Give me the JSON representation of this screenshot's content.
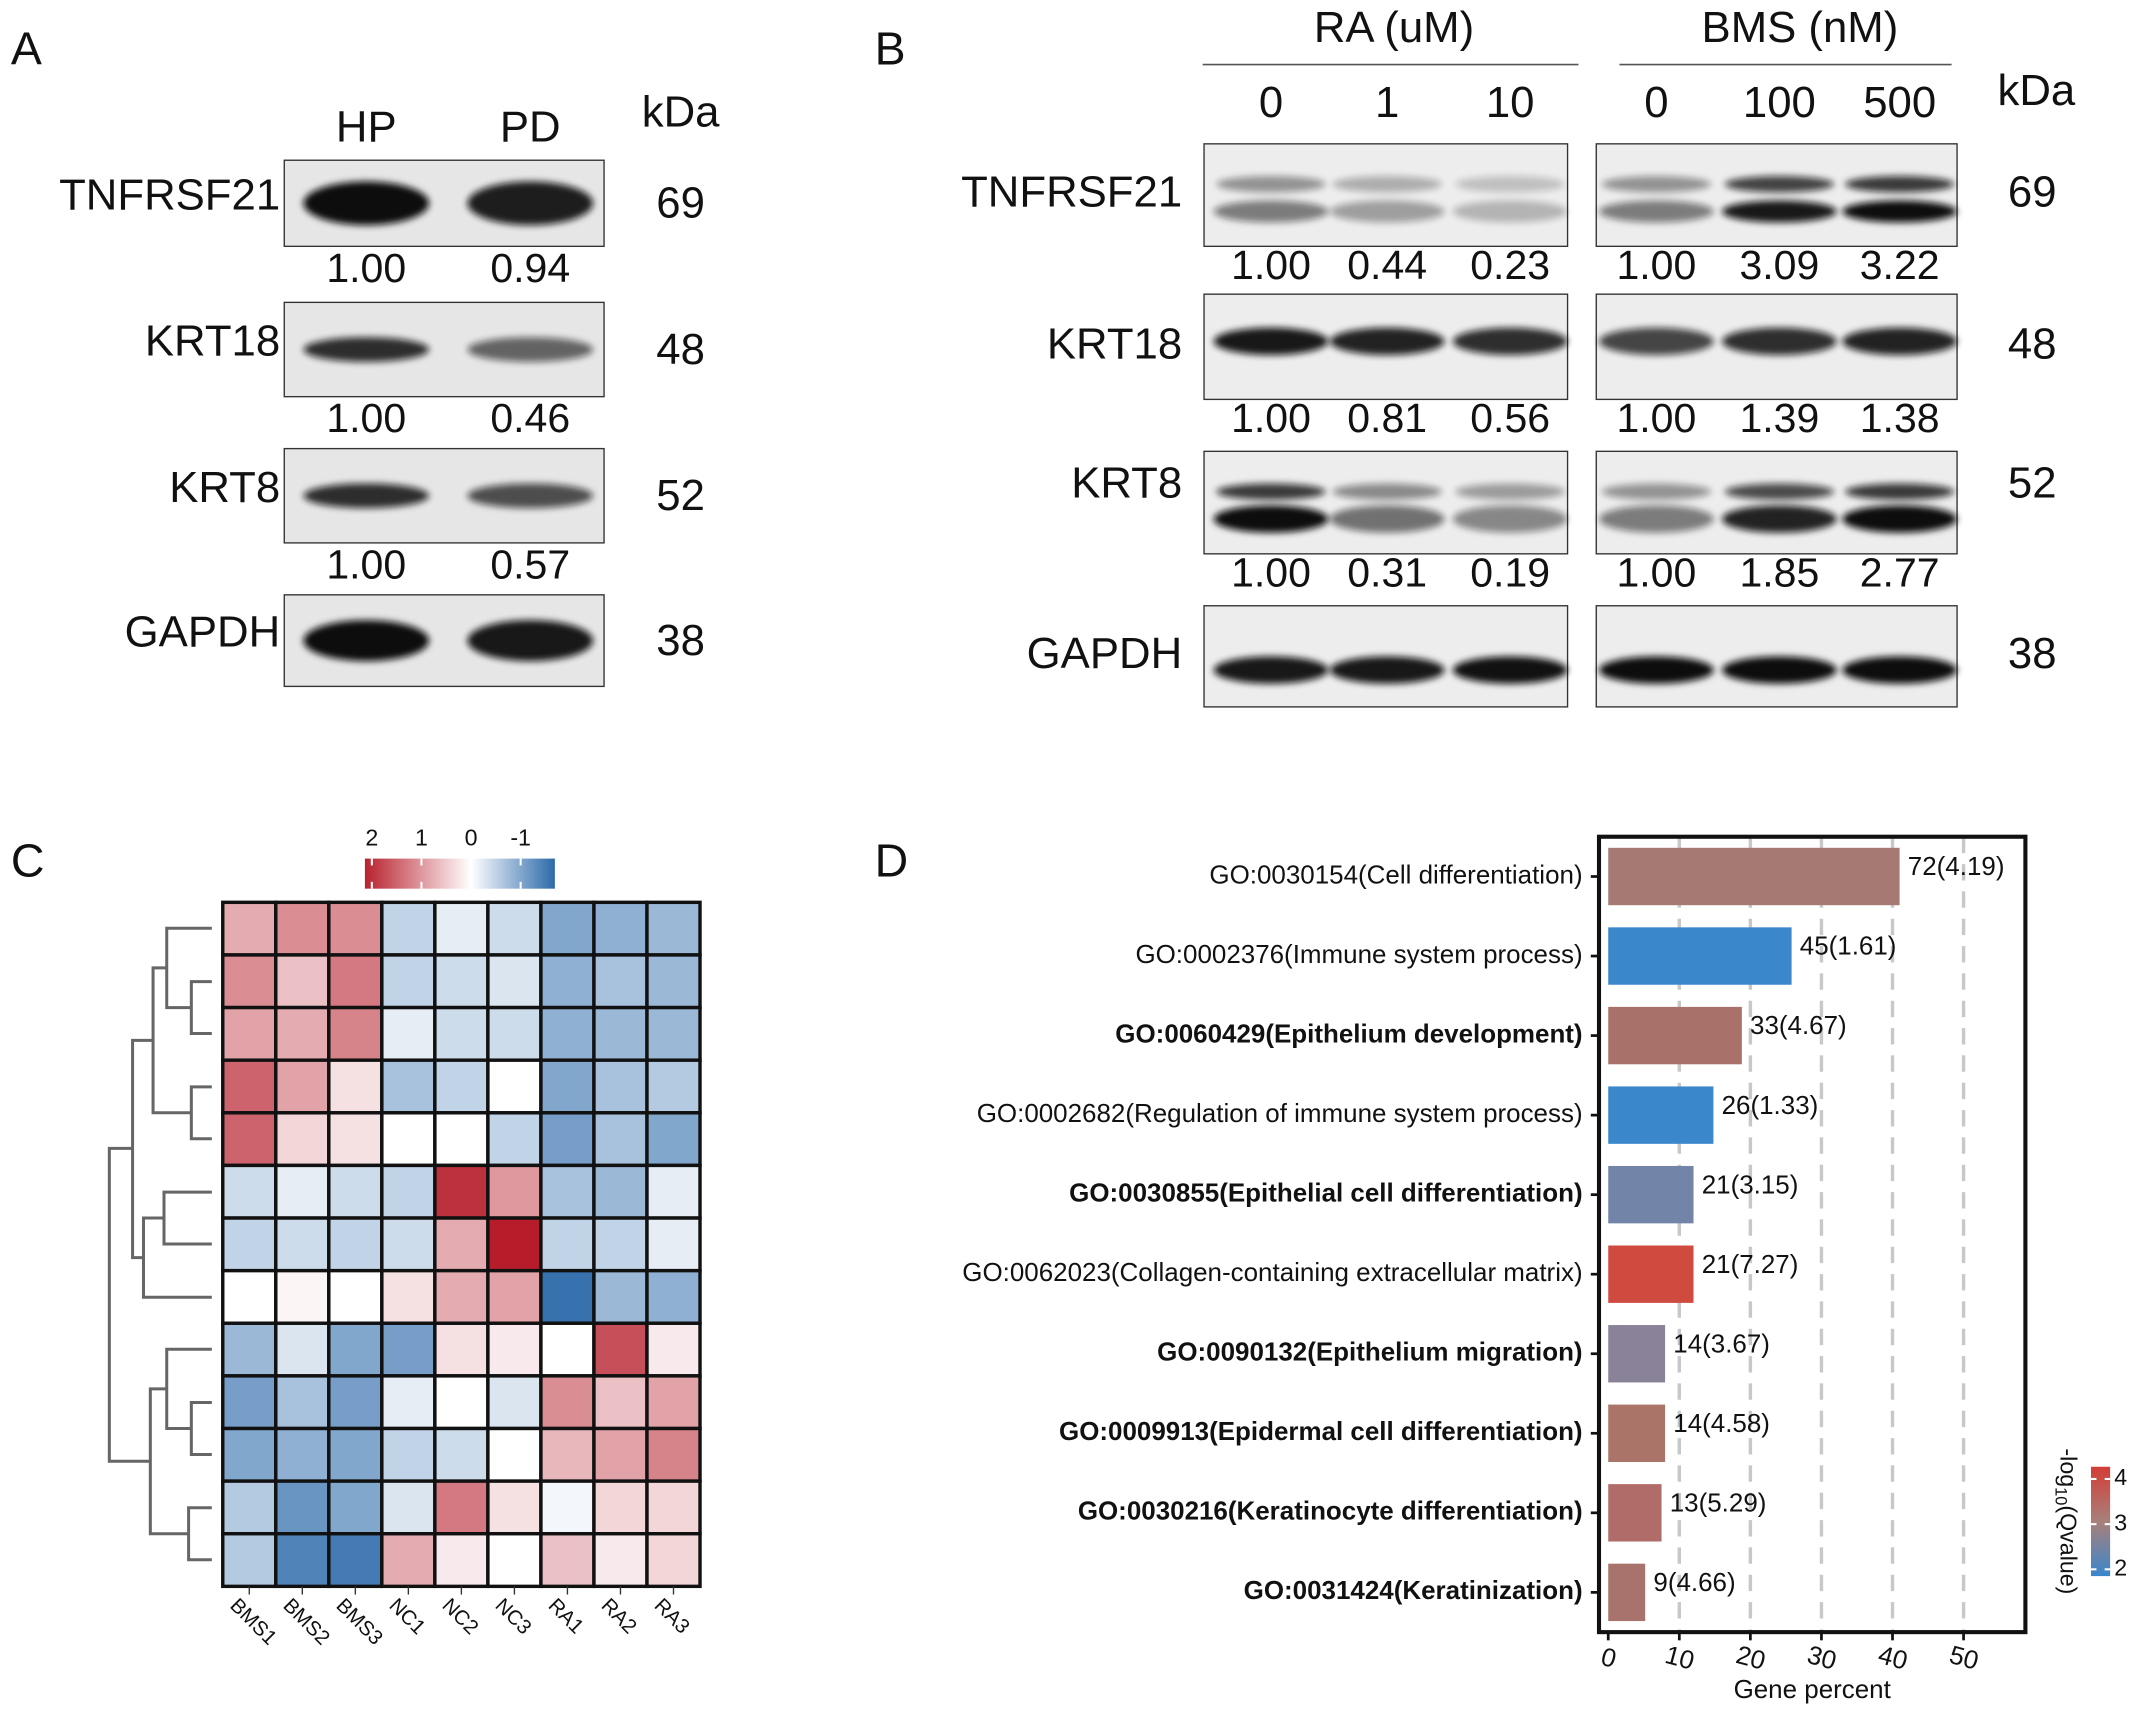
{
  "panel_a": {
    "label": "A",
    "columns": [
      "HP",
      "PD"
    ],
    "unit": "kDa",
    "rows": [
      {
        "protein": "TNFRSF21",
        "kda": "69",
        "ratios": [
          "1.00",
          "0.94"
        ]
      },
      {
        "protein": "KRT18",
        "kda": "48",
        "ratios": [
          "1.00",
          "0.46"
        ]
      },
      {
        "protein": "KRT8",
        "kda": "52",
        "ratios": [
          "1.00",
          "0.57"
        ]
      },
      {
        "protein": "GAPDH",
        "kda": "38"
      }
    ]
  },
  "panel_b": {
    "label": "B",
    "unit": "kDa",
    "groups": [
      {
        "name": "RA (uM)",
        "doses": [
          "0",
          "1",
          "10"
        ]
      },
      {
        "name": "BMS (nM)",
        "doses": [
          "0",
          "100",
          "500"
        ]
      }
    ],
    "rows": [
      {
        "protein": "TNFRSF21",
        "kda": "69",
        "ratios": [
          [
            "1.00",
            "0.44",
            "0.23"
          ],
          [
            "1.00",
            "3.09",
            "3.22"
          ]
        ]
      },
      {
        "protein": "KRT18",
        "kda": "48",
        "ratios": [
          [
            "1.00",
            "0.81",
            "0.56"
          ],
          [
            "1.00",
            "1.39",
            "1.38"
          ]
        ]
      },
      {
        "protein": "KRT8",
        "kda": "52",
        "ratios": [
          [
            "1.00",
            "0.31",
            "0.19"
          ],
          [
            "1.00",
            "1.85",
            "2.77"
          ]
        ]
      },
      {
        "protein": "GAPDH",
        "kda": "38"
      }
    ]
  },
  "chart_data": [
    {
      "type": "heatmap",
      "label": "C",
      "x": [
        "BMS1",
        "BMS2",
        "BMS3",
        "NC1",
        "NC2",
        "NC3",
        "RA1",
        "RA2",
        "RA3"
      ],
      "values": [
        [
          0.8,
          1.1,
          1.1,
          -0.5,
          -0.2,
          -0.4,
          -1.0,
          -0.9,
          -0.8
        ],
        [
          1.1,
          0.6,
          1.3,
          -0.5,
          -0.4,
          -0.3,
          -0.9,
          -0.7,
          -0.8
        ],
        [
          0.9,
          0.8,
          1.2,
          -0.2,
          -0.4,
          -0.4,
          -0.9,
          -0.8,
          -0.8
        ],
        [
          1.5,
          0.9,
          0.3,
          -0.7,
          -0.5,
          0.0,
          -1.0,
          -0.7,
          -0.6
        ],
        [
          1.5,
          0.4,
          0.3,
          0.0,
          0.0,
          -0.5,
          -1.1,
          -0.7,
          -1.0
        ],
        [
          -0.4,
          -0.2,
          -0.4,
          -0.5,
          2.0,
          1.0,
          -0.7,
          -0.8,
          -0.2
        ],
        [
          -0.5,
          -0.4,
          -0.5,
          -0.4,
          0.8,
          2.2,
          -0.5,
          -0.5,
          -0.2
        ],
        [
          0.0,
          0.1,
          0.0,
          0.3,
          0.8,
          0.9,
          -1.6,
          -0.8,
          -0.9
        ],
        [
          -0.8,
          -0.3,
          -1.0,
          -1.1,
          0.3,
          0.2,
          0.0,
          1.7,
          0.2
        ],
        [
          -1.1,
          -0.7,
          -1.1,
          -0.2,
          0.0,
          -0.3,
          1.1,
          0.6,
          0.9
        ],
        [
          -1.0,
          -0.9,
          -1.0,
          -0.5,
          -0.4,
          0.0,
          0.7,
          0.9,
          1.2
        ],
        [
          -0.6,
          -1.2,
          -1.0,
          -0.3,
          1.3,
          0.3,
          -0.1,
          0.4,
          0.4
        ],
        [
          -0.6,
          -1.4,
          -1.5,
          0.8,
          0.2,
          0.0,
          0.6,
          0.2,
          0.4
        ]
      ],
      "zlim": [
        -1.69,
        2.14
      ],
      "zticks": [
        2,
        1,
        0,
        -1
      ],
      "colormap": {
        "low": "#2c6aaa",
        "mid": "#ffffff",
        "high": "#b8222f"
      }
    },
    {
      "type": "barh",
      "label": "D",
      "categories": [
        "GO:0030154(Cell differentiation)",
        "GO:0002376(Immune system process)",
        "GO:0060429(Epithelium development)",
        "GO:0002682(Regulation of immune system process)",
        "GO:0030855(Epithelial cell differentiation)",
        "GO:0062023(Collagen-containing extracellular matrix)",
        "GO:0090132(Epithelium migration)",
        "GO:0009913(Epidermal cell differentiation)",
        "GO:0030216(Keratinocyte differentiation)",
        "GO:0031424(Keratinization)"
      ],
      "bold": [
        false,
        false,
        true,
        false,
        true,
        false,
        true,
        true,
        true,
        true
      ],
      "values": [
        41,
        25.8,
        18.8,
        14.8,
        12,
        12,
        8,
        8,
        7.5,
        5.2
      ],
      "annotations": [
        "72(4.19)",
        "45(1.61)",
        "33(4.67)",
        "26(1.33)",
        "21(3.15)",
        "21(7.27)",
        "14(3.67)",
        "14(4.58)",
        "13(5.29)",
        "9(4.66)"
      ],
      "colors": [
        "#a67a72",
        "#3a87cb",
        "#a8726a",
        "#3a87cb",
        "#7285a8",
        "#cf4b40",
        "#8a8298",
        "#aa7468",
        "#b06c68",
        "#a8736c"
      ],
      "xlabel": "Gene percent",
      "xlim": [
        -1.3,
        58.7
      ],
      "xticks": [
        0,
        10,
        20,
        30,
        40,
        50
      ],
      "grid": "dashed",
      "legend": {
        "title": {
          "prefix": "-log",
          "sub": "10",
          "suffix": "(Qvalue)"
        },
        "clim": [
          1.85,
          4.27
        ],
        "ticks": [
          2,
          3,
          4
        ],
        "colors": [
          "#3a86cc",
          "#a8807a",
          "#d43c36"
        ]
      }
    }
  ]
}
